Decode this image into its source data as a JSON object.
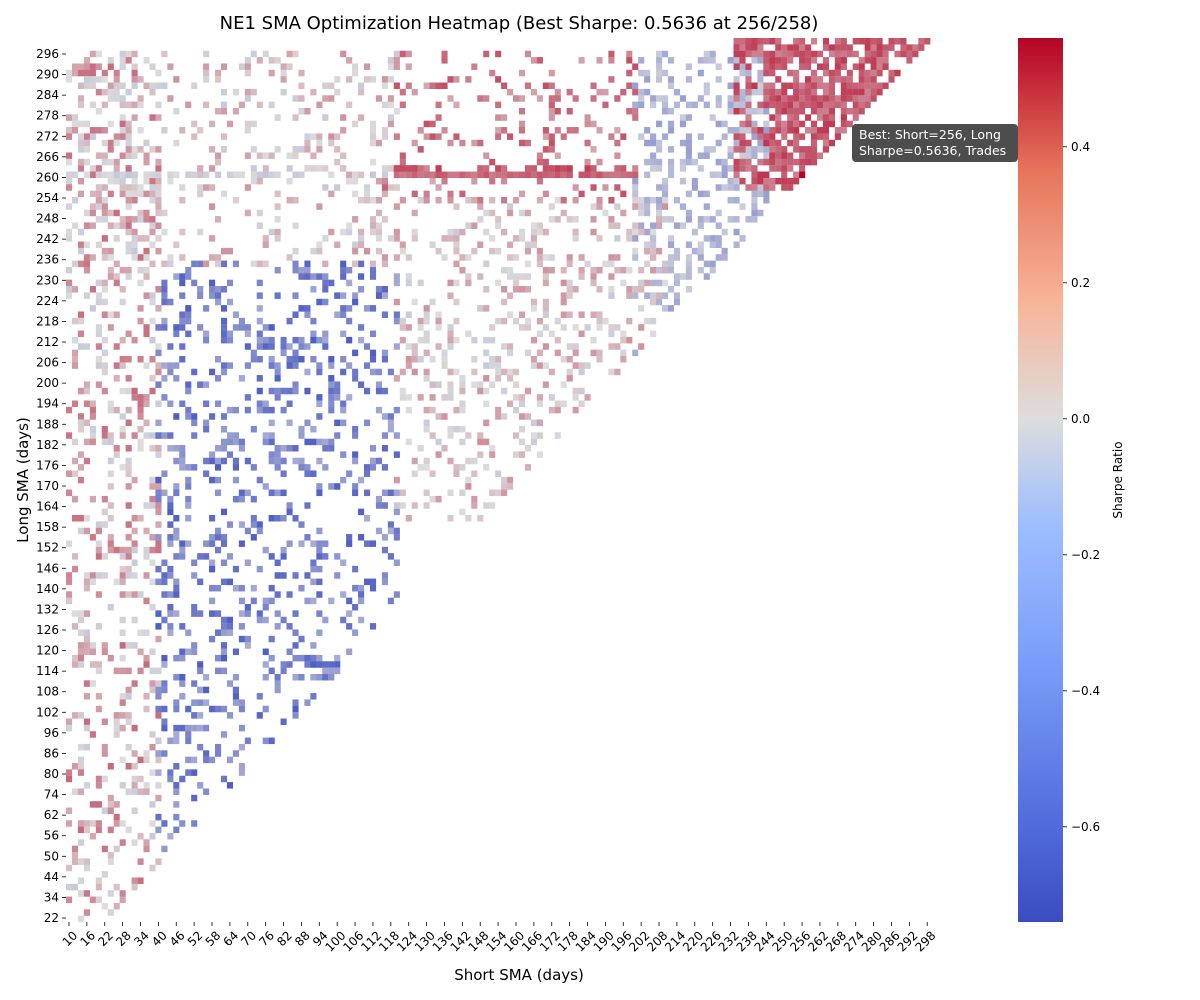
{
  "chart_data": {
    "type": "heatmap",
    "title": "NE1 SMA Optimization Heatmap (Best Sharpe: 0.5636 at 256/258)",
    "xlabel": "Short SMA (days)",
    "ylabel": "Long SMA (days)",
    "colorbar_label": "Sharpe Ratio",
    "colormap": "coolwarm",
    "color_low": "#3b4cc0",
    "color_mid": "#dddddd",
    "color_high": "#b40426",
    "vmin": -0.74,
    "vmax": 0.56,
    "colorbar_ticks": [
      {
        "value": 0.4,
        "label": "0.4"
      },
      {
        "value": 0.2,
        "label": "0.2"
      },
      {
        "value": 0.0,
        "label": "0.0"
      },
      {
        "value": -0.2,
        "label": "−0.2"
      },
      {
        "value": -0.4,
        "label": "−0.4"
      },
      {
        "value": -0.6,
        "label": "−0.6"
      }
    ],
    "x_ticks": [
      "10",
      "16",
      "22",
      "28",
      "34",
      "40",
      "46",
      "52",
      "58",
      "64",
      "70",
      "76",
      "82",
      "88",
      "94",
      "100",
      "106",
      "112",
      "118",
      "124",
      "130",
      "136",
      "142",
      "148",
      "154",
      "160",
      "166",
      "172",
      "178",
      "184",
      "190",
      "196",
      "202",
      "208",
      "214",
      "220",
      "226",
      "232",
      "238",
      "244",
      "250",
      "256",
      "262",
      "268",
      "274",
      "280",
      "286",
      "292",
      "298"
    ],
    "y_ticks": [
      "296",
      "290",
      "284",
      "278",
      "272",
      "266",
      "260",
      "254",
      "248",
      "242",
      "236",
      "230",
      "224",
      "218",
      "212",
      "206",
      "200",
      "194",
      "188",
      "182",
      "176",
      "170",
      "164",
      "158",
      "152",
      "146",
      "140",
      "132",
      "126",
      "120",
      "114",
      "108",
      "102",
      "96",
      "86",
      "80",
      "74",
      "62",
      "56",
      "50",
      "44",
      "34",
      "22"
    ],
    "best": {
      "short": 256,
      "long": 258,
      "sharpe": 0.5636
    },
    "annotation_lines": [
      "Best: Short=256, Long",
      "Sharpe=0.5636, Trades"
    ],
    "sparse_regions": [
      {
        "name": "left-mixed",
        "x_range": [
          10,
          40
        ],
        "y_range": [
          22,
          296
        ],
        "mean": 0.1,
        "spread": 0.2,
        "density": 0.28
      },
      {
        "name": "blue-diagonal-core",
        "x_range": [
          40,
          120
        ],
        "y_range": [
          40,
          230
        ],
        "mean": -0.45,
        "spread": 0.2,
        "density": 0.25
      },
      {
        "name": "middle-triangle",
        "x_range": [
          120,
          210
        ],
        "y_range": [
          150,
          250
        ],
        "mean": 0.05,
        "spread": 0.15,
        "density": 0.25
      },
      {
        "name": "top-left-sparse",
        "x_range": [
          10,
          120
        ],
        "y_range": [
          230,
          296
        ],
        "mean": 0.05,
        "spread": 0.15,
        "density": 0.18
      },
      {
        "name": "red-top-middle",
        "x_range": [
          115,
          200
        ],
        "y_range": [
          250,
          296
        ],
        "mean": 0.25,
        "spread": 0.12,
        "density": 0.2
      },
      {
        "name": "blue-right-middle",
        "x_range": [
          200,
          245
        ],
        "y_range": [
          200,
          296
        ],
        "mean": -0.2,
        "spread": 0.12,
        "density": 0.3
      },
      {
        "name": "red-top-right-dense",
        "x_range": [
          234,
          300
        ],
        "y_range": [
          254,
          300
        ],
        "mean": 0.33,
        "spread": 0.1,
        "density": 0.78
      }
    ],
    "bands": [
      {
        "name": "ridge-259-left",
        "long": 259,
        "x_range": [
          10,
          118
        ],
        "mean": -0.05,
        "spread": 0.07,
        "density": 0.55
      },
      {
        "name": "ridge-259-right",
        "long": 259,
        "x_range": [
          118,
          200
        ],
        "mean": 0.3,
        "spread": 0.06,
        "density": 0.9
      },
      {
        "name": "ridge-261",
        "long": 261,
        "x_range": [
          118,
          200
        ],
        "mean": 0.35,
        "spread": 0.08,
        "density": 0.45
      }
    ]
  }
}
